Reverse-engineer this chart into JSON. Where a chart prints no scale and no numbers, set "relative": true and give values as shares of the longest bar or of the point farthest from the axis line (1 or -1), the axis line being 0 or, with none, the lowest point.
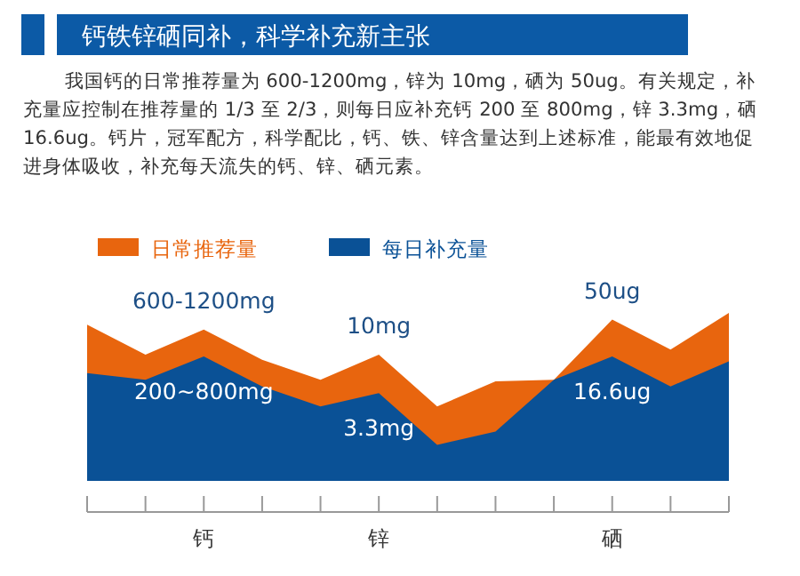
{
  "chart_data": {
    "type": "area",
    "title": "钙铁锌硒同补，科学补充新主张",
    "subtitle": "我国钙的日常推荐量为 600-1200mg，锌为 10mg，硒为 50ug。有关规定，补充量应控制在推荐量的 1/3 至 2/3，则每日应补充钙 200 至 800mg，锌 3.3mg，硒 16.6ug。钙片，冠军配方，科学配比，钙、铁、锌含量达到上述标准，能最有效地促进身体吸收，补充每天流失的钙、锌、硒元素。",
    "relative": true,
    "categories": [
      null,
      null,
      "钙",
      null,
      null,
      "锌",
      null,
      null,
      null,
      "硒",
      null,
      null
    ],
    "series": [
      {
        "name": "日常推荐量",
        "color": "#e8650e",
        "values": [
          0.93,
          0.75,
          0.9,
          0.72,
          0.6,
          0.75,
          0.44,
          0.59,
          0.6,
          0.96,
          0.78,
          1
        ]
      },
      {
        "name": "每日补充量",
        "color": "#0a5196",
        "values": [
          0.64,
          0.6,
          0.74,
          0.56,
          0.44,
          0.52,
          0.21,
          0.29,
          0.6,
          0.74,
          0.56,
          0.71
        ]
      }
    ],
    "annotations": [
      {
        "text": "600-1200mg",
        "x": "钙",
        "y": 0.9
      },
      {
        "text": "200~800mg",
        "x": "钙",
        "y": 0.74
      },
      {
        "text": "10mg",
        "x": "锌",
        "y": 0.75
      },
      {
        "text": "3.3mg",
        "x": "锌",
        "y": 0.52
      },
      {
        "text": "50ug",
        "x": "硒",
        "y": 0.96
      },
      {
        "text": "16.6ug",
        "x": "硒",
        "y": 0.74
      }
    ],
    "legend": "top left"
  }
}
